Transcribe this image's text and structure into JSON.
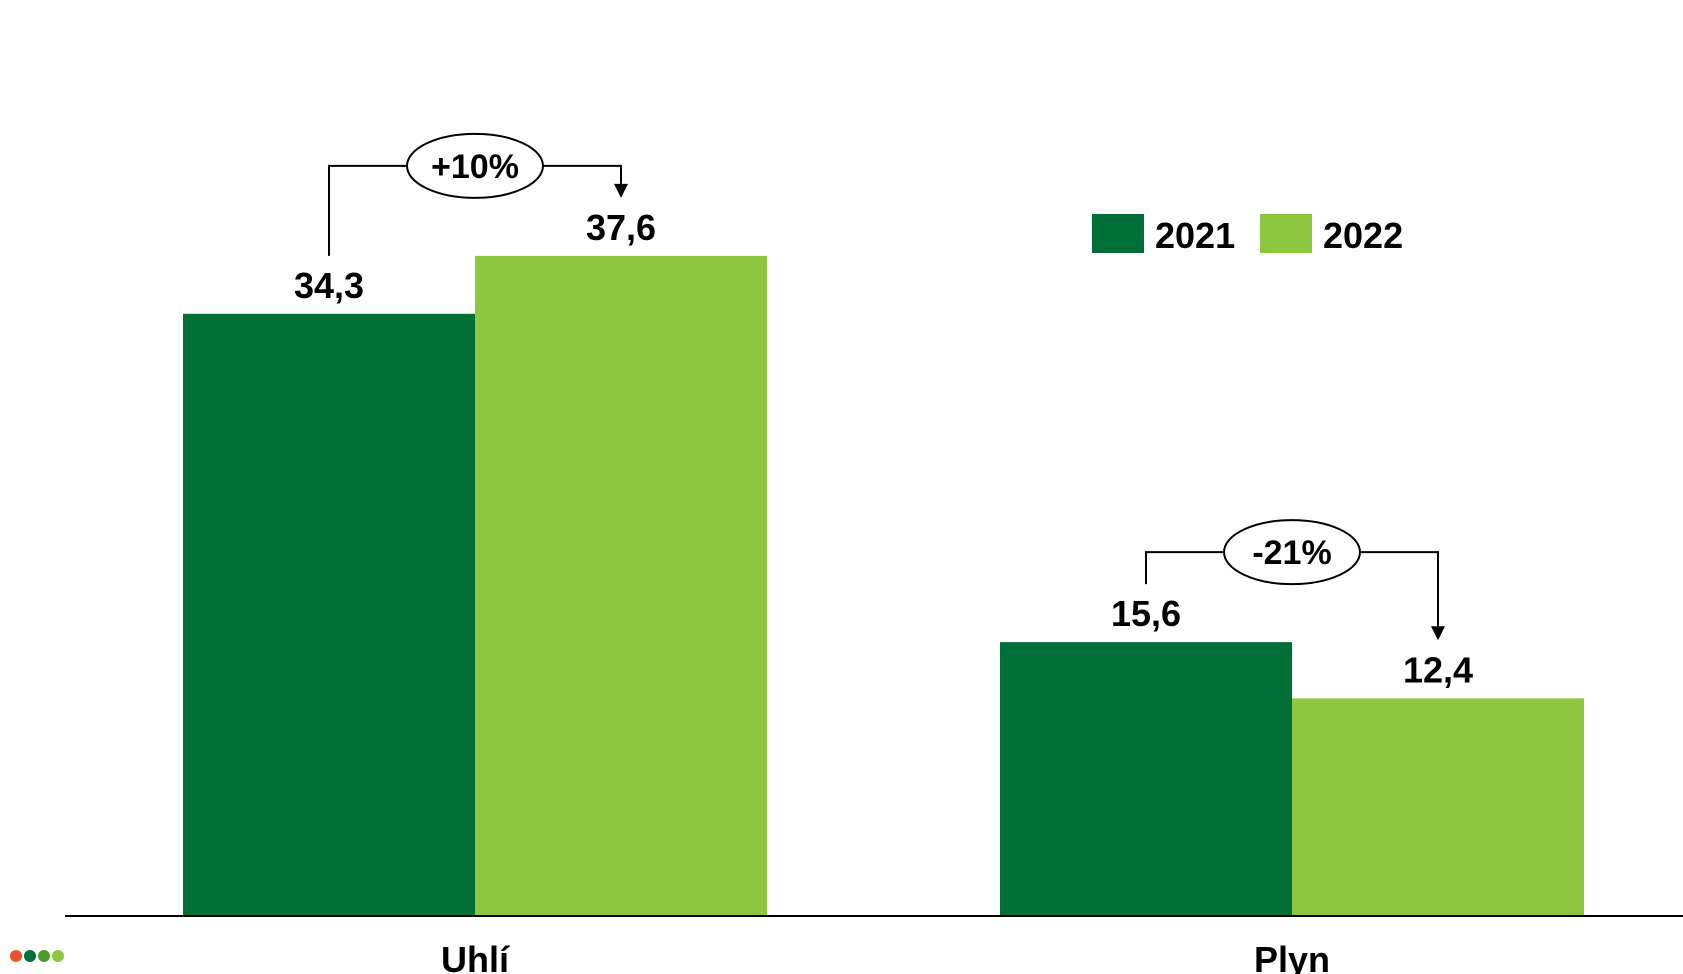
{
  "chart_data": {
    "type": "bar",
    "categories": [
      "Uhlí",
      "Plyn"
    ],
    "series": [
      {
        "name": "2021",
        "color": "#006F37",
        "values": [
          34.3,
          15.6
        ],
        "labels": [
          "34,3",
          "15,6"
        ]
      },
      {
        "name": "2022",
        "color": "#8DC63F",
        "values": [
          37.6,
          12.4
        ],
        "labels": [
          "37,6",
          "12,4"
        ]
      }
    ],
    "changes": [
      {
        "category": "Uhlí",
        "label": "+10%"
      },
      {
        "category": "Plyn",
        "label": "-21%"
      }
    ],
    "legend": {
      "position": "right",
      "entries": [
        "2021",
        "2022"
      ]
    },
    "grid": false,
    "ylim": [
      0,
      44.6
    ]
  },
  "decoration": {
    "dots_icon": "four-colored-dots-icon",
    "dot_colors": [
      "#E8542A",
      "#006F37",
      "#4C9A2A",
      "#8DC63F"
    ]
  }
}
